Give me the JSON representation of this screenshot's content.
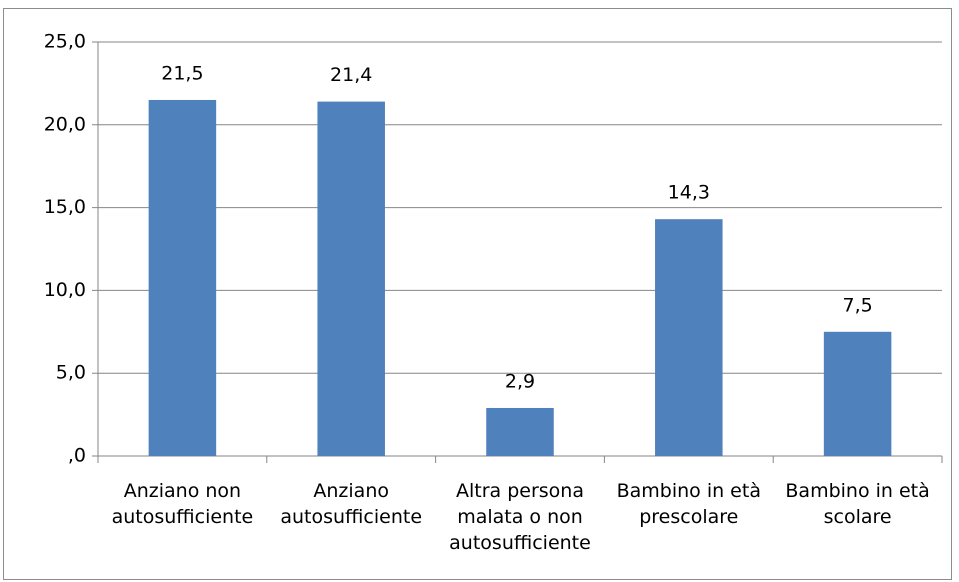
{
  "chart_data": {
    "type": "bar",
    "categories": [
      "Anziano non autosufficiente",
      "Anziano autosufficiente",
      "Altra persona malata o non autosufficiente",
      "Bambino in età prescolare",
      "Bambino in età scolare"
    ],
    "values": [
      21.5,
      21.4,
      2.9,
      14.3,
      7.5
    ],
    "value_labels": [
      "21,5",
      "21,4",
      "2,9",
      "14,3",
      "7,5"
    ],
    "color": "#4f81bd",
    "ylim": [
      0,
      25
    ],
    "yticks": [
      {
        "value": 0,
        "label": ",0"
      },
      {
        "value": 5,
        "label": "5,0"
      },
      {
        "value": 10,
        "label": "10,0"
      },
      {
        "value": 15,
        "label": "15,0"
      },
      {
        "value": 20,
        "label": "20,0"
      },
      {
        "value": 25,
        "label": "25,0"
      }
    ],
    "grid": true
  }
}
